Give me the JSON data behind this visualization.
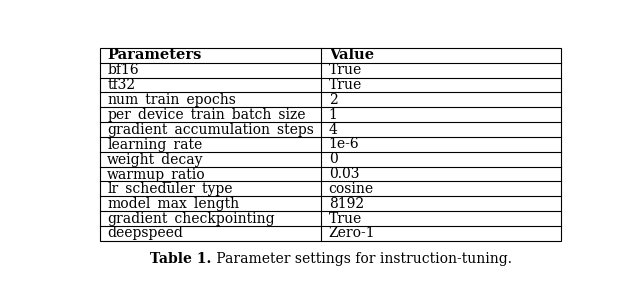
{
  "headers": [
    "Parameters",
    "Value"
  ],
  "rows": [
    [
      "bf16",
      "True"
    ],
    [
      "tf32",
      "True"
    ],
    [
      "num_train_epochs",
      "2"
    ],
    [
      "per_device_train_batch_size",
      "1"
    ],
    [
      "gradient_accumulation_steps",
      "4"
    ],
    [
      "learning_rate",
      "1e-6"
    ],
    [
      "weight_decay",
      "0"
    ],
    [
      "warmup_ratio",
      "0.03"
    ],
    [
      "lr_scheduler_type",
      "cosine"
    ],
    [
      "model_max_length",
      "8192"
    ],
    [
      "gradient_checkpointing",
      "True"
    ],
    [
      "deepspeed",
      "Zero-1"
    ]
  ],
  "caption_bold": "Table 1.",
  "caption_rest": " Parameter settings for instruction-tuning.",
  "col_split": 0.48,
  "bg_color": "#ffffff",
  "border_color": "#000000",
  "header_font_size": 10.5,
  "cell_font_size": 10,
  "caption_font_size": 10
}
